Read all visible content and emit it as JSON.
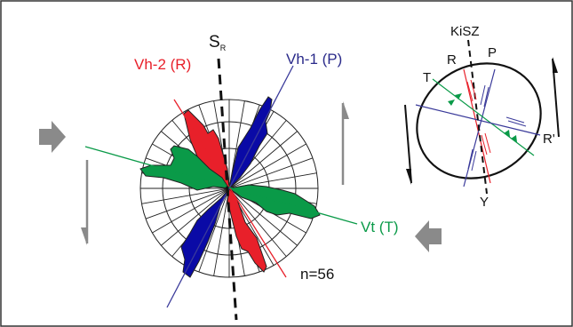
{
  "labels": {
    "sr_main": "S",
    "sr_sub": "R",
    "vh2": "Vh-2 (R)",
    "vh1": "Vh-1 (P)",
    "vt": "Vt (T)",
    "n": "n=56"
  },
  "inset": {
    "kisz": "KiSZ",
    "r": "R",
    "p": "P",
    "t": "T",
    "r_prime": "R'",
    "y": "Y"
  },
  "colors": {
    "red": "#e8202a",
    "blue": "#0a0aa6",
    "green": "#0a9a48",
    "line_blue": "#3a3a9a",
    "arrow_gray": "#8a8a8a",
    "black": "#222222"
  }
}
